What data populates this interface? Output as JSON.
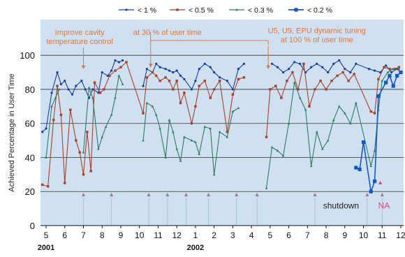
{
  "chart_data": {
    "type": "line",
    "ylabel": "Achieved Percentage in User Time",
    "ylim": [
      0,
      100
    ],
    "yticks": [
      0,
      20,
      40,
      60,
      80,
      100
    ],
    "xlim": [
      4.7,
      24.15
    ],
    "x_tick_positions": [
      5,
      6,
      7,
      8,
      9,
      10,
      11,
      12,
      13,
      14,
      15,
      16,
      17,
      18,
      19,
      20,
      21,
      22,
      23,
      24
    ],
    "x_tick_labels": [
      "5",
      "6",
      "7",
      "8",
      "9",
      "10",
      "11",
      "12",
      "1",
      "2",
      "3",
      "4",
      "5",
      "6",
      "7",
      "8",
      "9",
      "10",
      "11",
      "12"
    ],
    "year_labels": [
      {
        "label": "2001",
        "x": 5.0
      },
      {
        "label": "2002",
        "x": 13.0
      }
    ],
    "grid": "horizontal",
    "plot_background": "#cfe0f0",
    "legend_position": "top",
    "series": [
      {
        "name": "< 1 %",
        "color": "#1a3d9e",
        "marker": "circle",
        "points": [
          [
            4.8,
            55
          ],
          [
            5.0,
            57
          ],
          [
            5.3,
            78
          ],
          [
            5.6,
            90
          ],
          [
            5.8,
            83
          ],
          [
            6.0,
            85
          ],
          [
            6.2,
            80
          ],
          [
            6.4,
            77
          ],
          [
            6.6,
            82
          ],
          [
            6.9,
            85
          ],
          [
            7.1,
            80
          ],
          [
            7.3,
            75
          ],
          [
            7.5,
            80
          ],
          [
            7.8,
            78
          ],
          [
            8.0,
            90
          ],
          [
            8.3,
            88
          ],
          [
            8.5,
            91
          ],
          [
            8.7,
            97
          ],
          [
            8.9,
            96
          ],
          [
            9.1,
            97
          ],
          [
            10.2,
            82
          ],
          [
            10.4,
            92
          ],
          [
            10.7,
            90
          ],
          [
            10.9,
            95
          ],
          [
            11.1,
            93
          ],
          [
            11.4,
            92
          ],
          [
            11.6,
            91
          ],
          [
            11.8,
            90
          ],
          [
            12.0,
            91
          ],
          [
            12.2,
            88
          ],
          [
            12.4,
            86
          ],
          [
            12.8,
            80
          ],
          [
            13.0,
            85
          ],
          [
            13.2,
            92
          ],
          [
            13.5,
            95
          ],
          [
            13.8,
            93
          ],
          [
            14.0,
            90
          ],
          [
            14.3,
            87
          ],
          [
            14.7,
            85
          ],
          [
            15.0,
            80
          ],
          [
            15.3,
            92
          ],
          [
            15.6,
            95
          ],
          [
            17.1,
            95
          ],
          [
            17.4,
            93
          ],
          [
            17.7,
            90
          ],
          [
            18.0,
            92
          ],
          [
            18.3,
            96
          ],
          [
            18.6,
            95
          ],
          [
            18.9,
            90
          ],
          [
            19.2,
            93
          ],
          [
            19.5,
            95
          ],
          [
            19.8,
            93
          ],
          [
            20.1,
            90
          ],
          [
            20.4,
            95
          ],
          [
            20.7,
            97
          ],
          [
            21.0,
            92
          ],
          [
            21.3,
            90
          ],
          [
            21.6,
            95
          ],
          [
            22.3,
            92
          ],
          [
            22.6,
            91
          ],
          [
            22.9,
            90
          ],
          [
            23.2,
            94
          ],
          [
            23.5,
            90
          ],
          [
            23.8,
            92
          ],
          [
            24.0,
            90
          ]
        ]
      },
      {
        "name": "< 0.5 %",
        "color": "#a8422a",
        "marker": "square",
        "points": [
          [
            4.8,
            24
          ],
          [
            5.1,
            23
          ],
          [
            5.4,
            62
          ],
          [
            5.6,
            82
          ],
          [
            5.8,
            65
          ],
          [
            6.0,
            25
          ],
          [
            6.3,
            68
          ],
          [
            6.6,
            50
          ],
          [
            6.8,
            43
          ],
          [
            7.0,
            30
          ],
          [
            7.2,
            55
          ],
          [
            7.4,
            32
          ],
          [
            7.6,
            84
          ],
          [
            7.9,
            78
          ],
          [
            8.1,
            80
          ],
          [
            8.4,
            88
          ],
          [
            8.7,
            91
          ],
          [
            9.0,
            93
          ],
          [
            9.3,
            96
          ],
          [
            10.2,
            66
          ],
          [
            10.4,
            87
          ],
          [
            10.7,
            90
          ],
          [
            10.9,
            88
          ],
          [
            11.1,
            85
          ],
          [
            11.4,
            87
          ],
          [
            11.6,
            85
          ],
          [
            11.8,
            80
          ],
          [
            12.0,
            85
          ],
          [
            12.2,
            72
          ],
          [
            12.4,
            78
          ],
          [
            12.8,
            60
          ],
          [
            13.0,
            70
          ],
          [
            13.2,
            82
          ],
          [
            13.5,
            85
          ],
          [
            13.8,
            75
          ],
          [
            14.0,
            80
          ],
          [
            14.3,
            85
          ],
          [
            14.7,
            55
          ],
          [
            15.0,
            77
          ],
          [
            15.3,
            86
          ],
          [
            15.6,
            87
          ],
          [
            16.8,
            52
          ],
          [
            17.0,
            80
          ],
          [
            17.3,
            82
          ],
          [
            17.6,
            75
          ],
          [
            17.9,
            85
          ],
          [
            18.2,
            90
          ],
          [
            18.5,
            80
          ],
          [
            18.8,
            95
          ],
          [
            19.1,
            70
          ],
          [
            19.4,
            80
          ],
          [
            19.7,
            85
          ],
          [
            20.0,
            80
          ],
          [
            20.3,
            85
          ],
          [
            20.6,
            88
          ],
          [
            20.9,
            90
          ],
          [
            21.2,
            85
          ],
          [
            21.5,
            89
          ],
          [
            22.4,
            67
          ],
          [
            22.6,
            66
          ],
          [
            22.8,
            86
          ],
          [
            23.1,
            93
          ],
          [
            23.4,
            92
          ],
          [
            23.7,
            92
          ],
          [
            23.9,
            93
          ]
        ]
      },
      {
        "name": "< 0.3 %",
        "color": "#2f7a62",
        "marker": "triangle",
        "points": [
          [
            5.0,
            40
          ],
          [
            5.3,
            70
          ],
          [
            5.5,
            75
          ],
          [
            5.7,
            80
          ],
          [
            7.0,
            43
          ],
          [
            7.3,
            81
          ],
          [
            7.5,
            75
          ],
          [
            7.8,
            45
          ],
          [
            8.0,
            52
          ],
          [
            8.2,
            58
          ],
          [
            8.5,
            65
          ],
          [
            8.7,
            75
          ],
          [
            8.9,
            88
          ],
          [
            9.1,
            83
          ],
          [
            10.2,
            50
          ],
          [
            10.4,
            72
          ],
          [
            10.7,
            70
          ],
          [
            10.9,
            65
          ],
          [
            11.1,
            57
          ],
          [
            11.4,
            40
          ],
          [
            11.6,
            62
          ],
          [
            11.8,
            55
          ],
          [
            12.0,
            45
          ],
          [
            12.2,
            38
          ],
          [
            12.4,
            52
          ],
          [
            12.8,
            50
          ],
          [
            13.0,
            49
          ],
          [
            13.2,
            42
          ],
          [
            13.5,
            58
          ],
          [
            13.8,
            57
          ],
          [
            14.0,
            30
          ],
          [
            14.3,
            55
          ],
          [
            14.7,
            52
          ],
          [
            15.0,
            67
          ],
          [
            15.3,
            69
          ],
          [
            16.8,
            22
          ],
          [
            17.1,
            46
          ],
          [
            17.4,
            44
          ],
          [
            17.7,
            41
          ],
          [
            18.0,
            60
          ],
          [
            18.3,
            84
          ],
          [
            18.6,
            75
          ],
          [
            18.9,
            68
          ],
          [
            19.2,
            35
          ],
          [
            19.5,
            55
          ],
          [
            19.8,
            45
          ],
          [
            20.1,
            50
          ],
          [
            20.4,
            62
          ],
          [
            20.7,
            70
          ],
          [
            21.0,
            66
          ],
          [
            21.3,
            60
          ],
          [
            21.6,
            72
          ],
          [
            22.4,
            35
          ],
          [
            22.6,
            44
          ],
          [
            22.8,
            68
          ],
          [
            23.0,
            85
          ],
          [
            23.3,
            90
          ],
          [
            23.6,
            92
          ],
          [
            23.9,
            92
          ]
        ]
      },
      {
        "name": "< 0.2 %",
        "color": "#1458c8",
        "marker": "square-large",
        "points": [
          [
            21.6,
            34
          ],
          [
            21.8,
            33
          ],
          [
            22.0,
            49
          ],
          [
            22.4,
            20
          ],
          [
            22.6,
            26
          ],
          [
            22.8,
            76
          ],
          [
            23.2,
            84
          ],
          [
            23.4,
            88
          ],
          [
            23.6,
            82
          ],
          [
            23.8,
            88
          ],
          [
            24.0,
            90
          ]
        ]
      }
    ],
    "annotations": [
      {
        "text": "Improve cavity temperature control",
        "lines": [
          "Improve cavity",
          "temperature control"
        ],
        "color": "#e0783c",
        "x": 6.8,
        "y": 112,
        "arrow_to_x": 7.0,
        "arrow_to_y": 92
      },
      {
        "text": "at 30 % of user time",
        "lines": [
          "at 30 % of user time"
        ],
        "color": "#e0783c",
        "x": 11.5,
        "y": 112,
        "arrow_from_x": 10.6,
        "arrow_to_x": 10.6,
        "arrow_to_y": 93,
        "range_to_x": 16.9
      },
      {
        "text": "U5, U9, EPU dynamic tuning at 100 % of user time",
        "lines": [
          "U5, U9, EPU dynamic tuning",
          "at 100 % of user time"
        ],
        "color": "#e0783c",
        "x": 19.5,
        "y": 113,
        "arrow_to_x": 16.9,
        "arrow_to_y": 92
      },
      {
        "text": "shutdown",
        "lines": [
          "shutdown"
        ],
        "color": "#222222",
        "x": 20.8,
        "y": 10
      },
      {
        "text": "NA",
        "lines": [
          "NA"
        ],
        "color": "#e0447a",
        "x": 23.1,
        "y": 10
      }
    ],
    "triangle_markers_y": 18,
    "triangle_markers_x": [
      7.0,
      8.5,
      10.5,
      11.5,
      12.5,
      13.7,
      15.2,
      16.3,
      19.4,
      22.2,
      23.0
    ]
  }
}
